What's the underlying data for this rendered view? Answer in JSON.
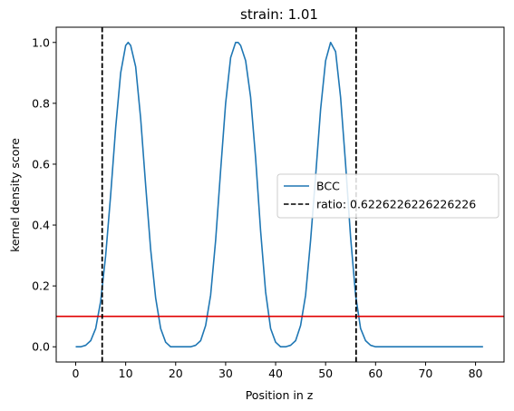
{
  "chart_data": {
    "type": "line",
    "title": "strain: 1.01",
    "xlabel": "Position in z",
    "ylabel": "kernel density score",
    "xlim": [
      -3.9,
      85.7
    ],
    "ylim": [
      -0.05,
      1.05
    ],
    "xticks": [
      0,
      10,
      20,
      30,
      40,
      50,
      60,
      70,
      80
    ],
    "yticks": [
      0.0,
      0.2,
      0.4,
      0.6,
      0.8,
      1.0
    ],
    "xtick_labels": [
      "0",
      "10",
      "20",
      "30",
      "40",
      "50",
      "60",
      "70",
      "80"
    ],
    "ytick_labels": [
      "0.0",
      "0.2",
      "0.4",
      "0.6",
      "0.8",
      "1.0"
    ],
    "grid": false,
    "legend_position": "center-right",
    "series": [
      {
        "name": "BCC",
        "color": "#1f77b4",
        "style": "solid",
        "x": [
          0,
          1,
          2,
          3,
          4,
          5,
          6,
          7,
          8,
          9,
          10,
          10.5,
          11,
          12,
          13,
          14,
          15,
          16,
          17,
          18,
          19,
          20,
          21,
          22,
          23,
          24,
          25,
          26,
          27,
          28,
          29,
          30,
          31,
          32,
          32.5,
          33,
          34,
          35,
          36,
          37,
          38,
          39,
          40,
          41,
          42,
          43,
          44,
          45,
          46,
          47,
          48,
          49,
          50,
          51,
          52,
          53,
          54,
          55,
          56,
          57,
          58,
          59,
          60,
          62,
          65,
          70,
          75,
          80,
          81.5
        ],
        "y": [
          0.0,
          0.0,
          0.005,
          0.02,
          0.06,
          0.15,
          0.3,
          0.5,
          0.72,
          0.9,
          0.99,
          1.0,
          0.99,
          0.92,
          0.75,
          0.53,
          0.32,
          0.16,
          0.06,
          0.015,
          0.0,
          0.0,
          0.0,
          0.0,
          0.0,
          0.005,
          0.02,
          0.07,
          0.17,
          0.35,
          0.58,
          0.8,
          0.95,
          1.0,
          1.0,
          0.99,
          0.94,
          0.82,
          0.62,
          0.38,
          0.18,
          0.06,
          0.015,
          0.0,
          0.0,
          0.005,
          0.02,
          0.07,
          0.17,
          0.35,
          0.56,
          0.78,
          0.94,
          1.0,
          0.97,
          0.82,
          0.6,
          0.36,
          0.17,
          0.06,
          0.02,
          0.005,
          0.0,
          0.0,
          0.0,
          0.0,
          0.0,
          0.0,
          0.0
        ]
      },
      {
        "name": "ratio: 0.6226226226226226",
        "color": "#000000",
        "style": "dashed",
        "vlines": [
          5.3,
          56.1
        ]
      }
    ],
    "hlines": [
      {
        "y": 0.1,
        "color": "#e00000"
      }
    ]
  }
}
